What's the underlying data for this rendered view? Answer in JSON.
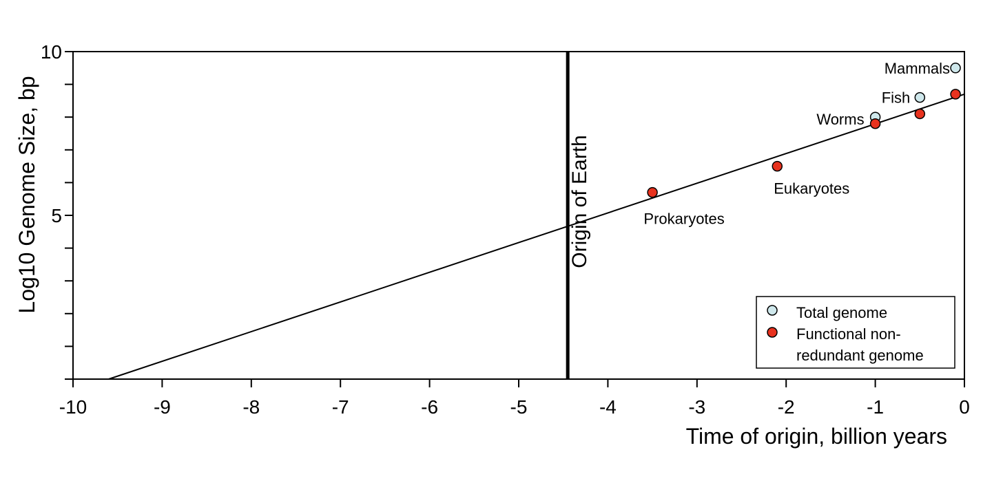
{
  "chart_data": {
    "type": "scatter",
    "title": "",
    "xlabel": "Time of origin, billion years",
    "ylabel": "Log10 Genome Size, bp",
    "xlim": [
      -10,
      0
    ],
    "ylim": [
      0,
      10
    ],
    "x_ticks": [
      -10,
      -9,
      -8,
      -7,
      -6,
      -5,
      -4,
      -3,
      -2,
      -1,
      0
    ],
    "y_tick_marks": [
      0,
      1,
      2,
      3,
      4,
      5,
      6,
      7,
      8,
      9,
      10
    ],
    "y_tick_labels": [
      5,
      10
    ],
    "grid": false,
    "legend_position": "bottom-right",
    "series": [
      {
        "name": "Total genome",
        "color": "#cfe8ec",
        "points": [
          {
            "x": -1.0,
            "y": 8.0,
            "label": "Worms"
          },
          {
            "x": -0.5,
            "y": 8.6,
            "label": "Fish"
          },
          {
            "x": -0.1,
            "y": 9.5,
            "label": "Mammals"
          }
        ]
      },
      {
        "name": "Functional non-redundant genome",
        "color": "#e8321e",
        "points": [
          {
            "x": -3.5,
            "y": 5.7,
            "label": "Prokaryotes"
          },
          {
            "x": -2.1,
            "y": 6.5,
            "label": "Eukaryotes"
          },
          {
            "x": -1.0,
            "y": 7.8,
            "label": ""
          },
          {
            "x": -0.5,
            "y": 8.1,
            "label": ""
          },
          {
            "x": -0.1,
            "y": 8.7,
            "label": ""
          }
        ]
      }
    ],
    "trend_line": {
      "x1": -9.6,
      "y1": 0.0,
      "x2": 0.0,
      "y2": 8.7
    },
    "origin_line": {
      "x": -4.45,
      "label": "Origin   of   Earth"
    },
    "legend_labels": [
      "Total genome",
      "Functional non-",
      "redundant genome"
    ]
  }
}
